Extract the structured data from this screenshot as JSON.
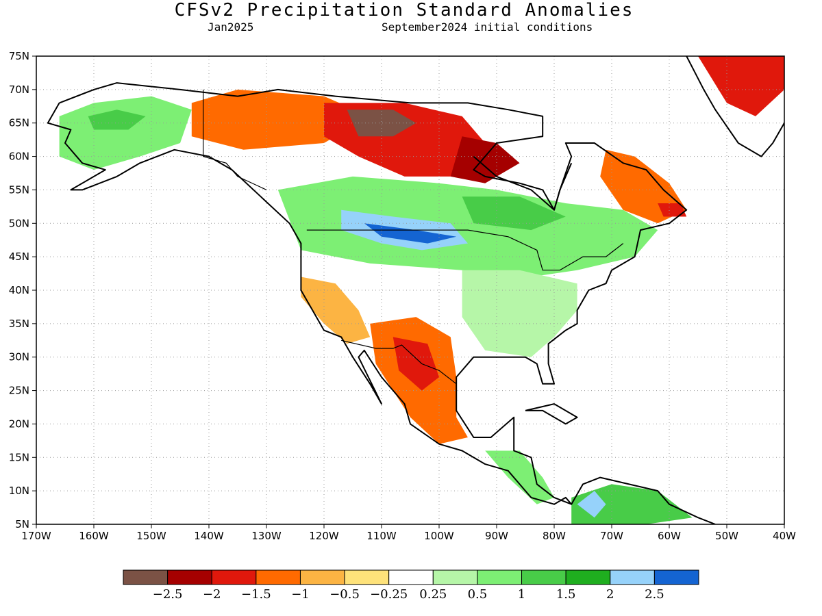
{
  "title": "CFSv2 Precipitation Standard Anomalies",
  "valid_month": "Jan2025",
  "init_conditions": "September2024 initial conditions",
  "map": {
    "lon_range": [
      -170,
      -40
    ],
    "lat_range": [
      5,
      75
    ],
    "lon_ticks": [
      {
        "value": -170,
        "label": "170W"
      },
      {
        "value": -160,
        "label": "160W"
      },
      {
        "value": -150,
        "label": "150W"
      },
      {
        "value": -140,
        "label": "140W"
      },
      {
        "value": -130,
        "label": "130W"
      },
      {
        "value": -120,
        "label": "120W"
      },
      {
        "value": -110,
        "label": "110W"
      },
      {
        "value": -100,
        "label": "100W"
      },
      {
        "value": -90,
        "label": "90W"
      },
      {
        "value": -80,
        "label": "80W"
      },
      {
        "value": -70,
        "label": "70W"
      },
      {
        "value": -60,
        "label": "60W"
      },
      {
        "value": -50,
        "label": "50W"
      },
      {
        "value": -40,
        "label": "40W"
      }
    ],
    "lat_ticks": [
      {
        "value": 75,
        "label": "75N"
      },
      {
        "value": 70,
        "label": "70N"
      },
      {
        "value": 65,
        "label": "65N"
      },
      {
        "value": 60,
        "label": "60N"
      },
      {
        "value": 55,
        "label": "55N"
      },
      {
        "value": 50,
        "label": "50N"
      },
      {
        "value": 45,
        "label": "45N"
      },
      {
        "value": 40,
        "label": "40N"
      },
      {
        "value": 35,
        "label": "35N"
      },
      {
        "value": 30,
        "label": "30N"
      },
      {
        "value": 25,
        "label": "25N"
      },
      {
        "value": 20,
        "label": "20N"
      },
      {
        "value": 15,
        "label": "15N"
      },
      {
        "value": 10,
        "label": "10N"
      },
      {
        "value": 5,
        "label": "5N"
      }
    ],
    "grid": "dotted"
  },
  "colorbar": {
    "colors": [
      "#7b5245",
      "#a50000",
      "#e0180c",
      "#ff6a00",
      "#fcb443",
      "#fee27a",
      "#ffffff",
      "#b6f6a8",
      "#7def74",
      "#48cc48",
      "#1fae1f",
      "#96d2fa",
      "#1464d2"
    ],
    "labels": [
      "−2.5",
      "−2",
      "−1.5",
      "−1",
      "−0.5",
      "−0.25",
      "0.25",
      "0.5",
      "1",
      "1.5",
      "2",
      "2.5"
    ]
  },
  "anomaly_regions": [
    {
      "name": "alaska-wet",
      "level": 9,
      "points": [
        [
          -166,
          66
        ],
        [
          -160,
          68
        ],
        [
          -150,
          69
        ],
        [
          -143,
          67
        ],
        [
          -145,
          62
        ],
        [
          -152,
          60
        ],
        [
          -160,
          58
        ],
        [
          -166,
          60
        ]
      ]
    },
    {
      "name": "alaska-core",
      "level": 10,
      "points": [
        [
          -161,
          66
        ],
        [
          -156,
          67
        ],
        [
          -151,
          66
        ],
        [
          -154,
          64
        ],
        [
          -160,
          64
        ]
      ]
    },
    {
      "name": "yukon-dry",
      "level": 4,
      "points": [
        [
          -143,
          68
        ],
        [
          -135,
          70
        ],
        [
          -120,
          69
        ],
        [
          -112,
          66
        ],
        [
          -120,
          62
        ],
        [
          -134,
          61
        ],
        [
          -143,
          63
        ]
      ]
    },
    {
      "name": "nunavut-dry",
      "level": 3,
      "points": [
        [
          -120,
          68
        ],
        [
          -106,
          68
        ],
        [
          -96,
          66
        ],
        [
          -92,
          62
        ],
        [
          -96,
          57
        ],
        [
          -106,
          57
        ],
        [
          -114,
          60
        ],
        [
          -120,
          63
        ]
      ]
    },
    {
      "name": "nunavut-core",
      "level": 1,
      "points": [
        [
          -116,
          67
        ],
        [
          -108,
          67
        ],
        [
          -104,
          65
        ],
        [
          -108,
          63
        ],
        [
          -114,
          63
        ]
      ]
    },
    {
      "name": "hudson-dry",
      "level": 2,
      "points": [
        [
          -96,
          63
        ],
        [
          -90,
          62
        ],
        [
          -86,
          59
        ],
        [
          -92,
          56
        ],
        [
          -98,
          57
        ]
      ]
    },
    {
      "name": "canada-wet",
      "level": 9,
      "points": [
        [
          -128,
          55
        ],
        [
          -115,
          57
        ],
        [
          -100,
          56
        ],
        [
          -90,
          55
        ],
        [
          -78,
          53
        ],
        [
          -68,
          52
        ],
        [
          -62,
          49
        ],
        [
          -66,
          45
        ],
        [
          -76,
          43
        ],
        [
          -84,
          42
        ],
        [
          -96,
          43
        ],
        [
          -112,
          44
        ],
        [
          -124,
          46
        ]
      ]
    },
    {
      "name": "canada-wet-core",
      "level": 10,
      "points": [
        [
          -96,
          54
        ],
        [
          -86,
          54
        ],
        [
          -78,
          51
        ],
        [
          -84,
          49
        ],
        [
          -94,
          50
        ]
      ]
    },
    {
      "name": "northern-plains-blue",
      "level": 12,
      "points": [
        [
          -117,
          52
        ],
        [
          -108,
          51
        ],
        [
          -98,
          50
        ],
        [
          -95,
          47
        ],
        [
          -103,
          46
        ],
        [
          -110,
          47
        ],
        [
          -117,
          49
        ]
      ]
    },
    {
      "name": "northern-plains-core",
      "level": 13,
      "points": [
        [
          -113,
          50
        ],
        [
          -104,
          49
        ],
        [
          -97,
          48
        ],
        [
          -102,
          47
        ],
        [
          -110,
          48
        ]
      ]
    },
    {
      "name": "us-east-wet",
      "level": 8,
      "points": [
        [
          -96,
          43
        ],
        [
          -86,
          43
        ],
        [
          -76,
          41
        ],
        [
          -76,
          37
        ],
        [
          -80,
          33
        ],
        [
          -84,
          30
        ],
        [
          -92,
          31
        ],
        [
          -96,
          36
        ]
      ]
    },
    {
      "name": "labrador-dry",
      "level": 4,
      "points": [
        [
          -71,
          61
        ],
        [
          -66,
          60
        ],
        [
          -60,
          56
        ],
        [
          -57,
          52
        ],
        [
          -62,
          50
        ],
        [
          -68,
          52
        ],
        [
          -72,
          57
        ]
      ]
    },
    {
      "name": "labrador-core",
      "level": 3,
      "points": [
        [
          -62,
          53
        ],
        [
          -58,
          53
        ],
        [
          -57,
          51
        ],
        [
          -61,
          51
        ]
      ]
    },
    {
      "name": "greenland-dry",
      "level": 3,
      "points": [
        [
          -55,
          75
        ],
        [
          -40,
          75
        ],
        [
          -40,
          70
        ],
        [
          -45,
          66
        ],
        [
          -50,
          68
        ]
      ]
    },
    {
      "name": "california-dry",
      "level": 5,
      "points": [
        [
          -124,
          42
        ],
        [
          -118,
          41
        ],
        [
          -114,
          37
        ],
        [
          -112,
          33
        ],
        [
          -116,
          32
        ],
        [
          -120,
          35
        ],
        [
          -124,
          39
        ]
      ]
    },
    {
      "name": "mexico-dry",
      "level": 4,
      "points": [
        [
          -112,
          35
        ],
        [
          -104,
          36
        ],
        [
          -98,
          33
        ],
        [
          -97,
          27
        ],
        [
          -97,
          21
        ],
        [
          -95,
          18
        ],
        [
          -100,
          17
        ],
        [
          -105,
          21
        ],
        [
          -108,
          25
        ],
        [
          -111,
          29
        ]
      ]
    },
    {
      "name": "mexico-core",
      "level": 3,
      "points": [
        [
          -108,
          33
        ],
        [
          -102,
          32
        ],
        [
          -100,
          27
        ],
        [
          -103,
          25
        ],
        [
          -107,
          28
        ]
      ]
    },
    {
      "name": "central-america-wet",
      "level": 9,
      "points": [
        [
          -92,
          16
        ],
        [
          -86,
          16
        ],
        [
          -82,
          12
        ],
        [
          -80,
          9
        ],
        [
          -83,
          8
        ],
        [
          -88,
          12
        ]
      ]
    },
    {
      "name": "south-america-wet",
      "level": 10,
      "points": [
        [
          -77,
          9
        ],
        [
          -70,
          11
        ],
        [
          -62,
          10
        ],
        [
          -56,
          6
        ],
        [
          -64,
          5
        ],
        [
          -77,
          5
        ]
      ]
    },
    {
      "name": "south-america-blue",
      "level": 12,
      "points": [
        [
          -76,
          8
        ],
        [
          -73,
          10
        ],
        [
          -71,
          8
        ],
        [
          -73,
          6
        ]
      ]
    }
  ],
  "coastlines": [
    {
      "name": "north-america-coast",
      "points": [
        [
          -166,
          68
        ],
        [
          -160,
          70
        ],
        [
          -156,
          71
        ],
        [
          -145,
          70
        ],
        [
          -135,
          69
        ],
        [
          -128,
          70
        ],
        [
          -118,
          69
        ],
        [
          -105,
          68
        ],
        [
          -95,
          68
        ],
        [
          -88,
          67
        ],
        [
          -82,
          66
        ],
        [
          -82,
          63
        ],
        [
          -90,
          62
        ],
        [
          -94,
          58
        ],
        [
          -92,
          57
        ],
        [
          -86,
          56
        ],
        [
          -82,
          55
        ],
        [
          -80,
          52
        ],
        [
          -79,
          55
        ],
        [
          -77,
          60
        ],
        [
          -78,
          62
        ],
        [
          -73,
          62
        ],
        [
          -68,
          59
        ],
        [
          -64,
          58
        ],
        [
          -61,
          55
        ],
        [
          -57,
          52
        ],
        [
          -60,
          50
        ],
        [
          -65,
          49
        ],
        [
          -66,
          45
        ],
        [
          -70,
          43
        ],
        [
          -71,
          41
        ],
        [
          -74,
          40
        ],
        [
          -76,
          37
        ],
        [
          -76,
          35
        ],
        [
          -78,
          34
        ],
        [
          -81,
          32
        ],
        [
          -81,
          29
        ],
        [
          -80,
          26
        ],
        [
          -82,
          26
        ],
        [
          -83,
          29
        ],
        [
          -85,
          30
        ],
        [
          -89,
          30
        ],
        [
          -94,
          30
        ],
        [
          -97,
          27
        ],
        [
          -97,
          22
        ],
        [
          -94,
          18
        ],
        [
          -91,
          18
        ],
        [
          -87,
          21
        ],
        [
          -87,
          16
        ],
        [
          -84,
          15
        ],
        [
          -83,
          11
        ],
        [
          -80,
          9
        ],
        [
          -77,
          8
        ],
        [
          -78,
          9
        ],
        [
          -80,
          8
        ],
        [
          -84,
          9
        ],
        [
          -86,
          11
        ],
        [
          -88,
          13
        ],
        [
          -92,
          14
        ],
        [
          -96,
          16
        ],
        [
          -100,
          17
        ],
        [
          -105,
          20
        ],
        [
          -106,
          23
        ],
        [
          -110,
          27
        ],
        [
          -113,
          31
        ],
        [
          -114,
          30
        ],
        [
          -110,
          23
        ],
        [
          -112,
          26
        ],
        [
          -115,
          30
        ],
        [
          -117,
          33
        ],
        [
          -120,
          34
        ],
        [
          -122,
          37
        ],
        [
          -124,
          40
        ],
        [
          -124,
          47
        ],
        [
          -126,
          50
        ],
        [
          -131,
          54
        ],
        [
          -136,
          58
        ],
        [
          -140,
          60
        ],
        [
          -146,
          61
        ],
        [
          -152,
          59
        ],
        [
          -156,
          57
        ],
        [
          -162,
          55
        ],
        [
          -164,
          55
        ],
        [
          -158,
          58
        ],
        [
          -162,
          59
        ],
        [
          -165,
          62
        ],
        [
          -164,
          64
        ],
        [
          -168,
          65
        ],
        [
          -166,
          68
        ]
      ]
    },
    {
      "name": "hudson-bay-coast",
      "points": [
        [
          -94,
          60
        ],
        [
          -90,
          57
        ],
        [
          -84,
          55
        ],
        [
          -80,
          52
        ],
        [
          -79,
          55
        ],
        [
          -77,
          59
        ]
      ]
    },
    {
      "name": "greenland-coast",
      "points": [
        [
          -57,
          75
        ],
        [
          -54,
          70
        ],
        [
          -52,
          67
        ],
        [
          -48,
          62
        ],
        [
          -44,
          60
        ],
        [
          -42,
          62
        ],
        [
          -40,
          65
        ]
      ]
    },
    {
      "name": "caribbean-cuba",
      "points": [
        [
          -85,
          22
        ],
        [
          -80,
          23
        ],
        [
          -76,
          21
        ],
        [
          -78,
          20
        ],
        [
          -82,
          22
        ],
        [
          -85,
          22
        ]
      ]
    },
    {
      "name": "south-america-coast",
      "points": [
        [
          -77,
          8
        ],
        [
          -75,
          11
        ],
        [
          -72,
          12
        ],
        [
          -67,
          11
        ],
        [
          -62,
          10
        ],
        [
          -60,
          8
        ],
        [
          -55,
          6
        ],
        [
          -52,
          5
        ]
      ]
    }
  ],
  "borders": [
    {
      "name": "us-canada-border",
      "points": [
        [
          -123,
          49
        ],
        [
          -95,
          49
        ],
        [
          -88,
          48
        ],
        [
          -83,
          46
        ],
        [
          -82,
          43
        ],
        [
          -79,
          43
        ],
        [
          -75,
          45
        ],
        [
          -71,
          45
        ],
        [
          -68,
          47
        ]
      ]
    },
    {
      "name": "alaska-canada-border",
      "points": [
        [
          -141,
          70
        ],
        [
          -141,
          60
        ],
        [
          -137,
          59
        ],
        [
          -135,
          57
        ],
        [
          -130,
          55
        ]
      ]
    },
    {
      "name": "us-mexico-border",
      "points": [
        [
          -117,
          32.5
        ],
        [
          -111,
          31.3
        ],
        [
          -108,
          31.3
        ],
        [
          -106.5,
          31.8
        ],
        [
          -103,
          29
        ],
        [
          -100,
          28
        ],
        [
          -97,
          26
        ]
      ]
    }
  ]
}
